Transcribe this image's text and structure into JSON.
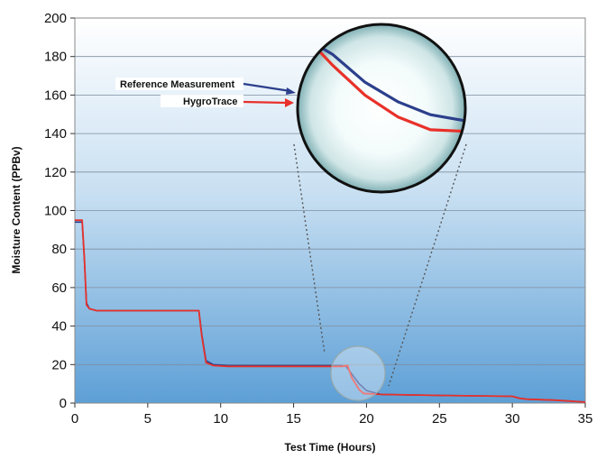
{
  "chart_data": {
    "type": "line",
    "title": "",
    "xlabel": "Test Time (Hours)",
    "ylabel": "Moisture Content (PPBv)",
    "xlim": [
      0,
      35
    ],
    "ylim": [
      0,
      200
    ],
    "x_ticks": [
      "0",
      "5",
      "10",
      "15",
      "20",
      "25",
      "30",
      "35"
    ],
    "y_ticks": [
      "0",
      "20",
      "40",
      "60",
      "80",
      "100",
      "120",
      "140",
      "160",
      "180",
      "200"
    ],
    "grid": "horizontal",
    "legend": [
      "Reference Measurement",
      "HygroTrace"
    ],
    "series": [
      {
        "name": "Reference Measurement",
        "color": "#2b3f8c",
        "x": [
          0,
          0.5,
          0.65,
          0.8,
          1.0,
          1.5,
          3,
          5,
          7,
          8.5,
          8.7,
          9.0,
          9.5,
          10.5,
          15,
          17,
          18.3,
          18.6,
          19.0,
          19.5,
          20.0,
          21.0,
          25,
          30,
          30.5,
          31,
          33,
          35
        ],
        "y": [
          94,
          94,
          75,
          52,
          49,
          48,
          48,
          48,
          48,
          48,
          36,
          22,
          20,
          19.5,
          19.5,
          19.5,
          19.5,
          19,
          15,
          10,
          6.5,
          4.5,
          4,
          3.5,
          2.5,
          2,
          1.5,
          0.5
        ]
      },
      {
        "name": "HygroTrace",
        "color": "#e8312a",
        "x": [
          0,
          0.5,
          0.65,
          0.8,
          1.0,
          1.5,
          3,
          5,
          7,
          8.5,
          8.7,
          9.0,
          9.5,
          10.5,
          15,
          17,
          18.3,
          18.7,
          19.0,
          19.5,
          19.8,
          21.0,
          25,
          30,
          30.5,
          31,
          33,
          35
        ],
        "y": [
          95,
          95,
          76,
          51,
          49,
          48,
          48,
          48,
          48,
          48,
          35,
          21,
          19.5,
          19,
          19,
          19,
          19,
          19.5,
          13,
          7,
          5,
          4.5,
          4,
          3.5,
          2.5,
          2,
          1.5,
          0.5
        ]
      }
    ],
    "zoom_inset": {
      "region_center": [
        19.5,
        16
      ],
      "series_inset": [
        {
          "name": "Reference Measurement",
          "x": [
            18.3,
            18.7,
            19.0,
            19.2,
            19.4,
            19.6,
            19.8,
            20.1,
            20.5,
            21.0
          ],
          "y": [
            19.5,
            19.5,
            19.4,
            18.5,
            17.2,
            16.3,
            15.7,
            15.3,
            14.9,
            14.6
          ]
        },
        {
          "name": "HygroTrace",
          "x": [
            18.3,
            18.7,
            18.8,
            19.0,
            19.2,
            19.4,
            19.6,
            19.8,
            20.1,
            20.5,
            21.0
          ],
          "y": [
            19.3,
            19.2,
            19.6,
            19.6,
            18.0,
            16.6,
            15.6,
            15.0,
            14.9,
            14.9,
            14.9
          ]
        }
      ]
    }
  }
}
